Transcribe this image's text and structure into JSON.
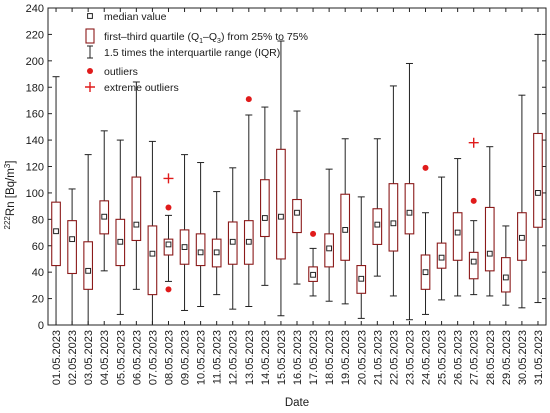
{
  "chart_data": {
    "type": "box",
    "xlabel": "Date",
    "ylabel": "222Rn [Bq/m3]",
    "ylim": [
      0,
      240
    ],
    "yticks": [
      0,
      20,
      40,
      60,
      80,
      100,
      120,
      140,
      160,
      180,
      200,
      220,
      240
    ],
    "grid": false,
    "legend_position": "top-left",
    "box_color": "#8b1a1a",
    "outlier_color": "#e01b1b",
    "categories": [
      "01.05.2023",
      "02.05.2023",
      "03.05.2023",
      "04.05.2023",
      "05.05.2023",
      "06.05.2023",
      "07.05.2023",
      "08.05.2023",
      "09.05.2023",
      "10.05.2023",
      "11.05.2023",
      "12.05.2023",
      "13.05.2023",
      "14.05.2023",
      "15.05.2023",
      "16.05.2023",
      "17.05.2023",
      "18.05.2023",
      "19.05.2023",
      "20.05.2023",
      "21.05.2023",
      "22.05.2023",
      "23.05.2023",
      "24.05.2023",
      "25.05.2023",
      "26.05.2023",
      "27.05.2023",
      "28.05.2023",
      "29.05.2023",
      "30.05.2023",
      "31.05.2023"
    ],
    "boxes": [
      {
        "median": 71,
        "q1": 45,
        "q3": 93,
        "whisker_low": 0,
        "whisker_high": 188
      },
      {
        "median": 65,
        "q1": 39,
        "q3": 79,
        "whisker_low": 0,
        "whisker_high": 103
      },
      {
        "median": 41,
        "q1": 27,
        "q3": 63,
        "whisker_low": 0,
        "whisker_high": 129
      },
      {
        "median": 82,
        "q1": 69,
        "q3": 94,
        "whisker_low": 41,
        "whisker_high": 147
      },
      {
        "median": 63,
        "q1": 45,
        "q3": 80,
        "whisker_low": 8,
        "whisker_high": 140
      },
      {
        "median": 76,
        "q1": 64,
        "q3": 112,
        "whisker_low": 27,
        "whisker_high": 184
      },
      {
        "median": 54,
        "q1": 23,
        "q3": 75,
        "whisker_low": 0,
        "whisker_high": 139
      },
      {
        "median": 61,
        "q1": 53,
        "q3": 65,
        "whisker_low": 33,
        "whisker_high": 83,
        "outliers": [
          89,
          27
        ],
        "extreme_outliers": [
          111
        ]
      },
      {
        "median": 59,
        "q1": 46,
        "q3": 72,
        "whisker_low": 11,
        "whisker_high": 129
      },
      {
        "median": 55,
        "q1": 45,
        "q3": 69,
        "whisker_low": 14,
        "whisker_high": 123
      },
      {
        "median": 55,
        "q1": 44,
        "q3": 65,
        "whisker_low": 23,
        "whisker_high": 101
      },
      {
        "median": 63,
        "q1": 46,
        "q3": 78,
        "whisker_low": 12,
        "whisker_high": 119
      },
      {
        "median": 63,
        "q1": 46,
        "q3": 79,
        "whisker_low": 14,
        "whisker_high": 159,
        "outliers": [
          171
        ]
      },
      {
        "median": 81,
        "q1": 67,
        "q3": 110,
        "whisker_low": 30,
        "whisker_high": 165
      },
      {
        "median": 82,
        "q1": 50,
        "q3": 133,
        "whisker_low": 7,
        "whisker_high": 215
      },
      {
        "median": 85,
        "q1": 70,
        "q3": 95,
        "whisker_low": 31,
        "whisker_high": 162
      },
      {
        "median": 38,
        "q1": 33,
        "q3": 44,
        "whisker_low": 22,
        "whisker_high": 58,
        "outliers": [
          69
        ]
      },
      {
        "median": 58,
        "q1": 44,
        "q3": 69,
        "whisker_low": 18,
        "whisker_high": 118
      },
      {
        "median": 72,
        "q1": 49,
        "q3": 99,
        "whisker_low": 16,
        "whisker_high": 141
      },
      {
        "median": 35,
        "q1": 24,
        "q3": 45,
        "whisker_low": 5,
        "whisker_high": 97
      },
      {
        "median": 76,
        "q1": 61,
        "q3": 88,
        "whisker_low": 37,
        "whisker_high": 141
      },
      {
        "median": 77,
        "q1": 56,
        "q3": 107,
        "whisker_low": 22,
        "whisker_high": 181
      },
      {
        "median": 85,
        "q1": 69,
        "q3": 107,
        "whisker_low": 4,
        "whisker_high": 198
      },
      {
        "median": 40,
        "q1": 27,
        "q3": 53,
        "whisker_low": 8,
        "whisker_high": 85,
        "outliers": [
          119
        ]
      },
      {
        "median": 51,
        "q1": 43,
        "q3": 62,
        "whisker_low": 19,
        "whisker_high": 112
      },
      {
        "median": 70,
        "q1": 49,
        "q3": 85,
        "whisker_low": 22,
        "whisker_high": 126
      },
      {
        "median": 48,
        "q1": 35,
        "q3": 55,
        "whisker_low": 23,
        "whisker_high": 79,
        "outliers": [
          94
        ],
        "extreme_outliers": [
          138
        ]
      },
      {
        "median": 54,
        "q1": 41,
        "q3": 89,
        "whisker_low": 22,
        "whisker_high": 135
      },
      {
        "median": 36,
        "q1": 25,
        "q3": 51,
        "whisker_low": 15,
        "whisker_high": 75
      },
      {
        "median": 66,
        "q1": 49,
        "q3": 85,
        "whisker_low": 13,
        "whisker_high": 174
      },
      {
        "median": 100,
        "q1": 74,
        "q3": 145,
        "whisker_low": 17,
        "whisker_high": 220
      }
    ],
    "legend": [
      {
        "symbol": "median",
        "label": "median value"
      },
      {
        "symbol": "box",
        "label_main": "first–third quartile (Q",
        "label_tail": ") from 25% to 75%"
      },
      {
        "symbol": "whisker",
        "label": "1.5 times the interquartile range (IQR)"
      },
      {
        "symbol": "outlier",
        "label": "outliers"
      },
      {
        "symbol": "extreme",
        "label": "extreme outliers"
      }
    ]
  }
}
